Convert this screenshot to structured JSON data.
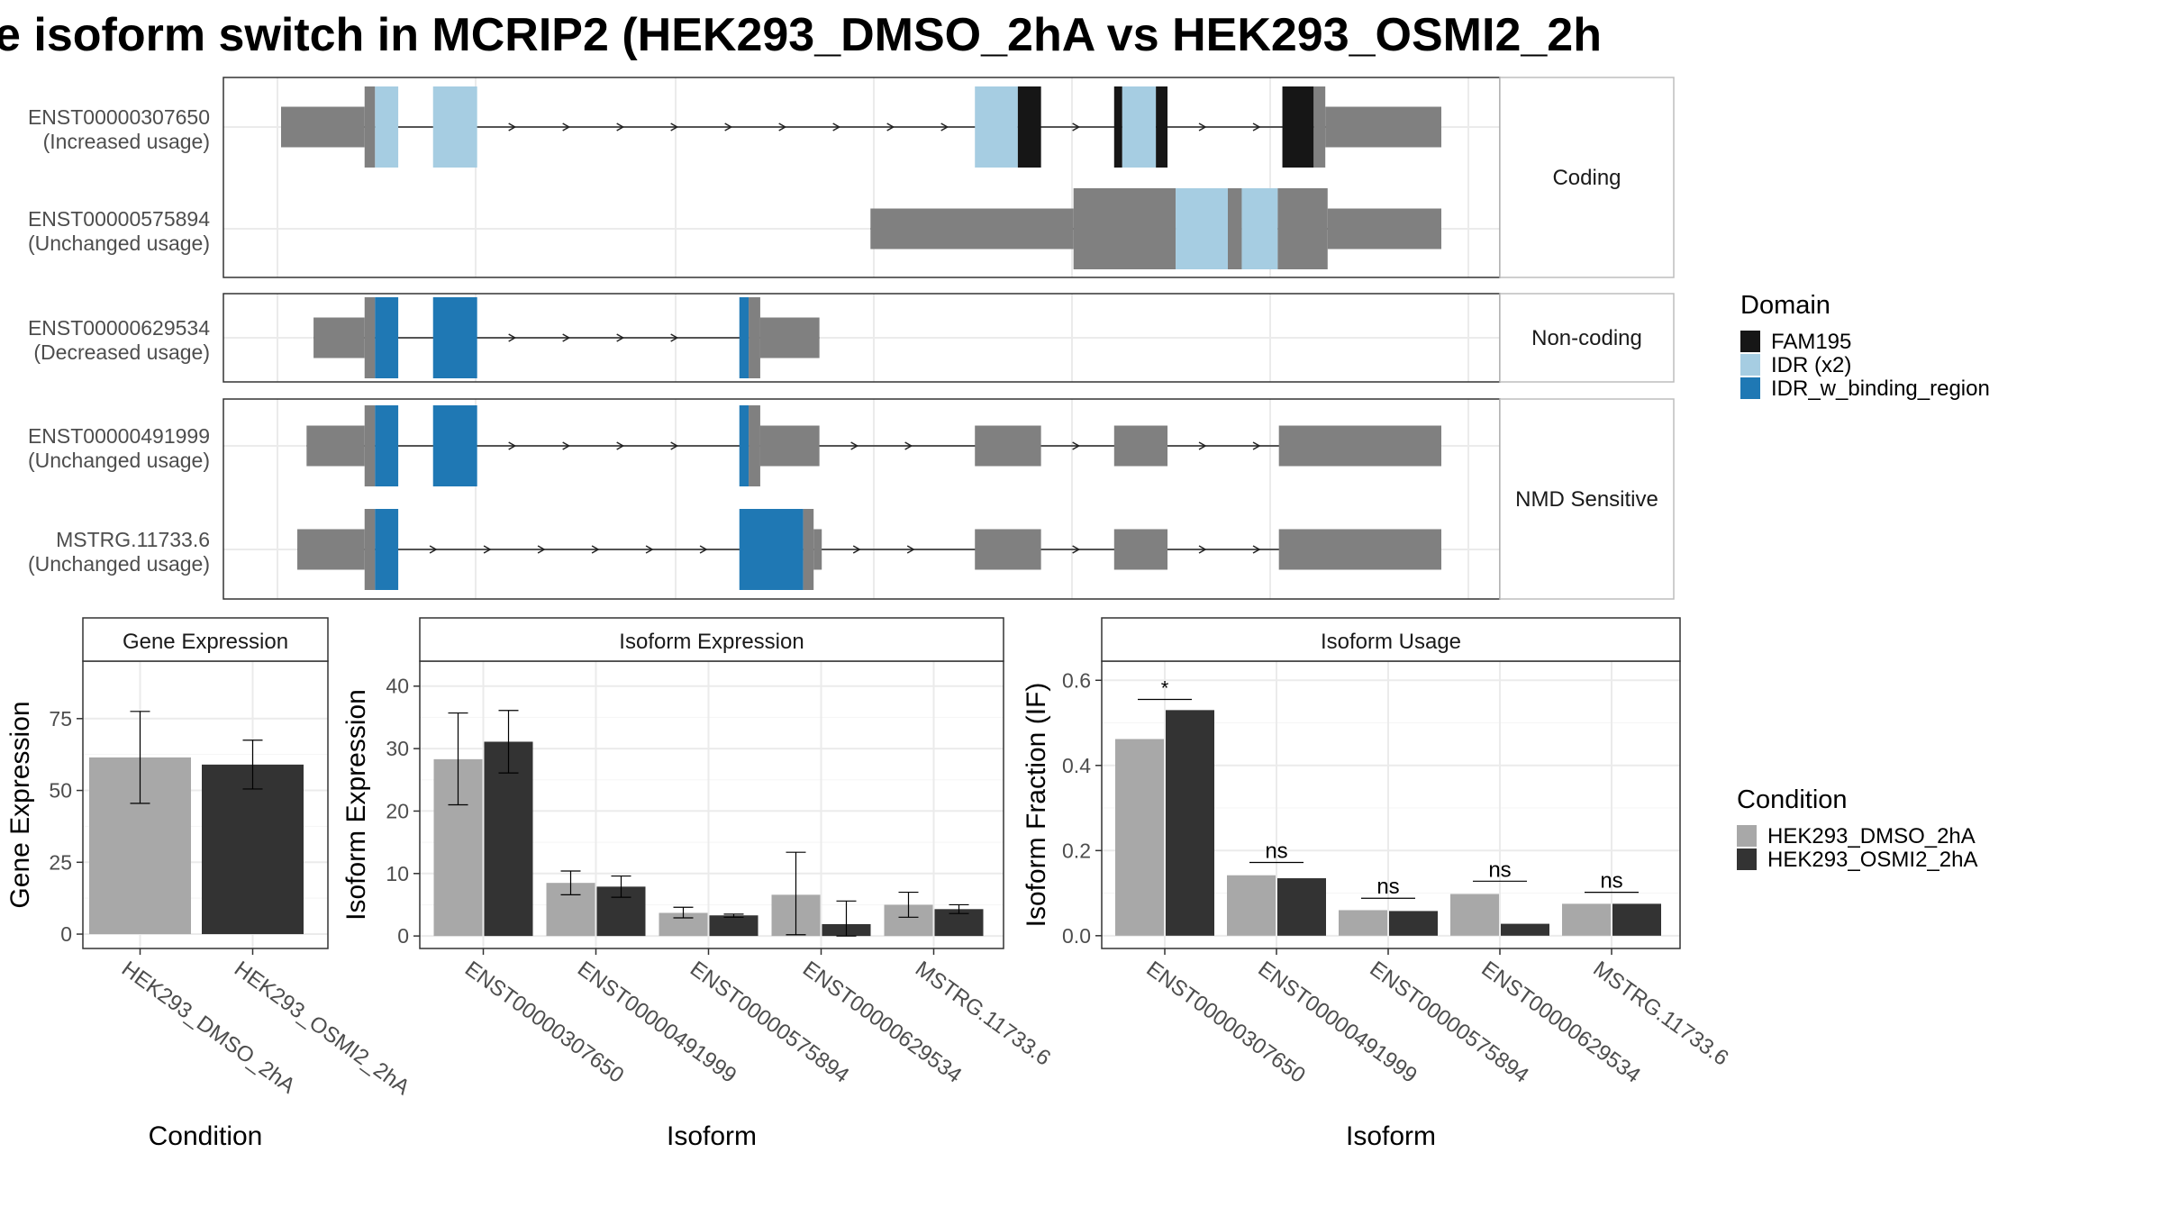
{
  "figure": {
    "title": "e isoform switch in MCRIP2 (HEK293_DMSO_2hA vs HEK293_OSMI2_2h"
  },
  "domain_legend": {
    "title": "Domain",
    "items": [
      {
        "label": "FAM195",
        "color": "#161616"
      },
      {
        "label": "IDR (x2)",
        "color": "#a6cde2"
      },
      {
        "label": "IDR_w_binding_region",
        "color": "#1f78b4"
      }
    ]
  },
  "condition_legend": {
    "title": "Condition",
    "items": [
      {
        "label": "HEK293_DMSO_2hA",
        "color": "#a8a8a8"
      },
      {
        "label": "HEK293_OSMI2_2hA",
        "color": "#333333"
      }
    ]
  },
  "colors": {
    "exon": "#808080",
    "intron": "#222222",
    "panel_border": "#333333",
    "strip_border": "#bdbdbd",
    "grid": "#ebebeb"
  },
  "structure": {
    "genomic_span": [
      0,
      100
    ],
    "panels": [
      {
        "strip": "Coding",
        "transcripts": [
          {
            "name": "ENST00000307650",
            "usage": "(Increased usage)",
            "segments": [
              {
                "s": 0,
                "e": 7.2,
                "h": "thin",
                "c": "exon"
              },
              {
                "s": 7.2,
                "e": 8.1,
                "h": "thick",
                "c": "exon"
              },
              {
                "s": 8.1,
                "e": 10.1,
                "h": "thick",
                "c": "IDR (x2)"
              },
              {
                "s": 13.1,
                "e": 16.9,
                "h": "thick",
                "c": "IDR (x2)"
              },
              {
                "s": 59.8,
                "e": 63.5,
                "h": "thick",
                "c": "IDR (x2)"
              },
              {
                "s": 63.5,
                "e": 65.5,
                "h": "thick",
                "c": "FAM195"
              },
              {
                "s": 71.8,
                "e": 72.5,
                "h": "thick",
                "c": "FAM195"
              },
              {
                "s": 72.5,
                "e": 75.4,
                "h": "thick",
                "c": "IDR (x2)"
              },
              {
                "s": 75.4,
                "e": 76.4,
                "h": "thick",
                "c": "FAM195"
              },
              {
                "s": 86.3,
                "e": 89.0,
                "h": "thick",
                "c": "FAM195"
              },
              {
                "s": 89.0,
                "e": 90.0,
                "h": "thick",
                "c": "exon"
              },
              {
                "s": 90.0,
                "e": 100,
                "h": "thin",
                "c": "exon"
              }
            ]
          },
          {
            "name": "ENST00000575894",
            "usage": "(Unchanged usage)",
            "segments": [
              {
                "s": 50.8,
                "e": 68.3,
                "h": "thin",
                "c": "exon"
              },
              {
                "s": 68.3,
                "e": 77.1,
                "h": "thick",
                "c": "exon"
              },
              {
                "s": 77.1,
                "e": 81.6,
                "h": "thick",
                "c": "IDR (x2)"
              },
              {
                "s": 81.6,
                "e": 82.8,
                "h": "thick",
                "c": "exon"
              },
              {
                "s": 82.8,
                "e": 85.9,
                "h": "thick",
                "c": "IDR (x2)"
              },
              {
                "s": 85.9,
                "e": 90.2,
                "h": "thick",
                "c": "exon"
              },
              {
                "s": 90.2,
                "e": 100,
                "h": "thin",
                "c": "exon"
              }
            ]
          }
        ]
      },
      {
        "strip": "Non-coding",
        "transcripts": [
          {
            "name": "ENST00000629534",
            "usage": "(Decreased usage)",
            "segments": [
              {
                "s": 2.8,
                "e": 7.2,
                "h": "thin",
                "c": "exon"
              },
              {
                "s": 7.2,
                "e": 8.1,
                "h": "thick",
                "c": "exon"
              },
              {
                "s": 8.1,
                "e": 10.1,
                "h": "thick",
                "c": "IDR_w_binding_region"
              },
              {
                "s": 13.1,
                "e": 16.9,
                "h": "thick",
                "c": "IDR_w_binding_region"
              },
              {
                "s": 39.5,
                "e": 40.3,
                "h": "thick",
                "c": "IDR_w_binding_region"
              },
              {
                "s": 40.3,
                "e": 41.3,
                "h": "thick",
                "c": "exon"
              },
              {
                "s": 41.3,
                "e": 46.4,
                "h": "thin",
                "c": "exon"
              }
            ]
          }
        ]
      },
      {
        "strip": "NMD Sensitive",
        "transcripts": [
          {
            "name": "ENST00000491999",
            "usage": "(Unchanged usage)",
            "segments": [
              {
                "s": 2.2,
                "e": 7.2,
                "h": "thin",
                "c": "exon"
              },
              {
                "s": 7.2,
                "e": 8.1,
                "h": "thick",
                "c": "exon"
              },
              {
                "s": 8.1,
                "e": 10.1,
                "h": "thick",
                "c": "IDR_w_binding_region"
              },
              {
                "s": 13.1,
                "e": 16.9,
                "h": "thick",
                "c": "IDR_w_binding_region"
              },
              {
                "s": 39.5,
                "e": 40.3,
                "h": "thick",
                "c": "IDR_w_binding_region"
              },
              {
                "s": 40.3,
                "e": 41.3,
                "h": "thick",
                "c": "exon"
              },
              {
                "s": 41.3,
                "e": 46.4,
                "h": "thin",
                "c": "exon"
              },
              {
                "s": 59.8,
                "e": 65.5,
                "h": "thin",
                "c": "exon"
              },
              {
                "s": 71.8,
                "e": 76.4,
                "h": "thin",
                "c": "exon"
              },
              {
                "s": 86.0,
                "e": 100,
                "h": "thin",
                "c": "exon"
              }
            ]
          },
          {
            "name": "MSTRG.11733.6",
            "usage": "(Unchanged usage)",
            "segments": [
              {
                "s": 1.4,
                "e": 7.2,
                "h": "thin",
                "c": "exon"
              },
              {
                "s": 7.2,
                "e": 8.1,
                "h": "thick",
                "c": "exon"
              },
              {
                "s": 8.1,
                "e": 10.1,
                "h": "thick",
                "c": "IDR_w_binding_region"
              },
              {
                "s": 39.5,
                "e": 45.0,
                "h": "thick",
                "c": "IDR_w_binding_region"
              },
              {
                "s": 45.0,
                "e": 45.9,
                "h": "thick",
                "c": "exon"
              },
              {
                "s": 45.9,
                "e": 46.6,
                "h": "thin",
                "c": "exon"
              },
              {
                "s": 59.8,
                "e": 65.5,
                "h": "thin",
                "c": "exon"
              },
              {
                "s": 71.8,
                "e": 76.4,
                "h": "thin",
                "c": "exon"
              },
              {
                "s": 86.0,
                "e": 100,
                "h": "thin",
                "c": "exon"
              }
            ]
          }
        ]
      }
    ]
  },
  "chart_data": [
    {
      "type": "bar",
      "title": "Gene Expression",
      "xlabel": "Condition",
      "ylabel": "Gene Expression",
      "ylim": [
        -5,
        95
      ],
      "yticks": [
        0,
        25,
        50,
        75
      ],
      "ytick_labels": [
        "0",
        "25",
        "50",
        "75"
      ],
      "categories": [
        "HEK293_DMSO_2hA",
        "HEK293_OSMI2_2hA"
      ],
      "series": [
        {
          "name": "HEK293_DMSO_2hA",
          "values": [
            61.5,
            null
          ],
          "err_low": [
            45.5,
            null
          ],
          "err_high": [
            77.5,
            null
          ]
        },
        {
          "name": "HEK293_OSMI2_2hA",
          "values": [
            null,
            59.0
          ],
          "err_low": [
            null,
            50.5
          ],
          "err_high": [
            null,
            67.5
          ]
        }
      ]
    },
    {
      "type": "bar",
      "title": "Isoform Expression",
      "xlabel": "Isoform",
      "ylabel": "Isoform Expression",
      "ylim": [
        -2,
        44
      ],
      "yticks": [
        0,
        10,
        20,
        30,
        40
      ],
      "ytick_labels": [
        "0",
        "10",
        "20",
        "30",
        "40"
      ],
      "categories": [
        "ENST00000307650",
        "ENST00000491999",
        "ENST00000575894",
        "ENST00000629534",
        "MSTRG.11733.6"
      ],
      "series": [
        {
          "name": "HEK293_DMSO_2hA",
          "values": [
            28.3,
            8.5,
            3.7,
            6.6,
            5.0
          ],
          "err_low": [
            21.0,
            6.6,
            2.9,
            0.2,
            3.0
          ],
          "err_high": [
            35.7,
            10.4,
            4.6,
            13.4,
            7.0
          ]
        },
        {
          "name": "HEK293_OSMI2_2hA",
          "values": [
            31.1,
            7.9,
            3.3,
            1.9,
            4.3
          ],
          "err_low": [
            26.1,
            6.2,
            3.0,
            0,
            3.6
          ],
          "err_high": [
            36.1,
            9.6,
            3.5,
            5.6,
            5.0
          ]
        }
      ]
    },
    {
      "type": "bar",
      "title": "Isoform Usage",
      "xlabel": "Isoform",
      "ylabel": "Isoform Fraction (IF)",
      "ylim": [
        -0.03,
        0.645
      ],
      "yticks": [
        0,
        0.2,
        0.4,
        0.6
      ],
      "ytick_labels": [
        "0.0",
        "0.2",
        "0.4",
        "0.6"
      ],
      "categories": [
        "ENST00000307650",
        "ENST00000491999",
        "ENST00000575894",
        "ENST00000629534",
        "MSTRG.11733.6"
      ],
      "series": [
        {
          "name": "HEK293_DMSO_2hA",
          "values": [
            0.462,
            0.142,
            0.06,
            0.098,
            0.075
          ]
        },
        {
          "name": "HEK293_OSMI2_2hA",
          "values": [
            0.53,
            0.135,
            0.058,
            0.028,
            0.075
          ]
        }
      ],
      "significance": [
        "*",
        "ns",
        "ns",
        "ns",
        "ns"
      ],
      "significance_y": [
        0.555,
        0.172,
        0.088,
        0.128,
        0.102
      ]
    }
  ]
}
